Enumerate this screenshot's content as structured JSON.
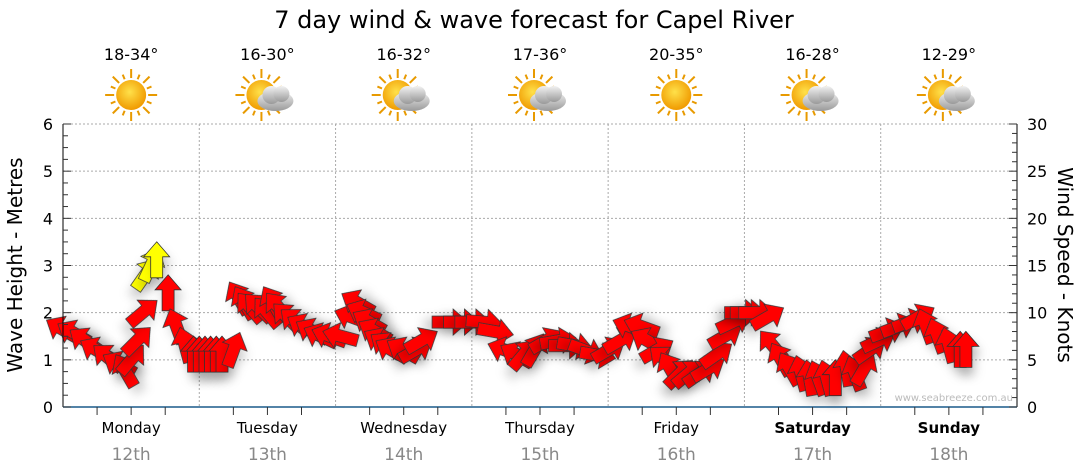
{
  "chart_data": {
    "type": "scatter",
    "title": "7 day wind & wave forecast for Capel River",
    "ylabel_left": "Wave Height - Metres",
    "ylabel_right": "Wind Speed - Knots",
    "ylim_left": [
      0,
      6
    ],
    "ylim_right": [
      0,
      30
    ],
    "yticks_left": [
      "0",
      "1",
      "2",
      "3",
      "4",
      "5",
      "6"
    ],
    "yticks_right": [
      "0",
      "5",
      "10",
      "15",
      "20",
      "25",
      "30"
    ],
    "grid": true,
    "watermark": "www.seabreeze.com.au",
    "days": [
      {
        "name": "Monday",
        "date": "12th",
        "temp": "18-34°",
        "icon": "sun-icon",
        "bold": false
      },
      {
        "name": "Tuesday",
        "date": "13th",
        "temp": "16-30°",
        "icon": "sun-cloud-icon",
        "bold": false
      },
      {
        "name": "Wednesday",
        "date": "14th",
        "temp": "16-32°",
        "icon": "sun-cloud-icon",
        "bold": false
      },
      {
        "name": "Thursday",
        "date": "15th",
        "temp": "17-36°",
        "icon": "sun-cloud-icon",
        "bold": false
      },
      {
        "name": "Friday",
        "date": "16th",
        "temp": "20-35°",
        "icon": "sun-icon",
        "bold": false
      },
      {
        "name": "Saturday",
        "date": "17th",
        "temp": "16-28°",
        "icon": "sun-cloud-icon",
        "bold": true
      },
      {
        "name": "Sunday",
        "date": "18th",
        "temp": "12-29°",
        "icon": "sun-cloud-icon",
        "bold": true
      }
    ],
    "colors": {
      "calm": "#ff0000",
      "strong": "#ffff00"
    },
    "wind_points_hour_knots_dir": [
      [
        0,
        8.2,
        300
      ],
      [
        2,
        7.8,
        300
      ],
      [
        4,
        7,
        305
      ],
      [
        6,
        6,
        300
      ],
      [
        8,
        5.2,
        310
      ],
      [
        10,
        4.5,
        300
      ],
      [
        11,
        3.8,
        330
      ],
      [
        12,
        5,
        40
      ],
      [
        13,
        7,
        45
      ],
      [
        14,
        10,
        50
      ],
      [
        14.5,
        14,
        35
      ],
      [
        15.5,
        15,
        25
      ],
      [
        16.5,
        15.5,
        0
      ],
      [
        18.5,
        12,
        0
      ],
      [
        20,
        8.5,
        340
      ],
      [
        21.5,
        6.5,
        345
      ],
      [
        23,
        5.5,
        0
      ],
      [
        24,
        5.5,
        0
      ],
      [
        25,
        5.5,
        0
      ],
      [
        26,
        5.5,
        0
      ],
      [
        27,
        5.5,
        0
      ],
      [
        28,
        5.5,
        0
      ],
      [
        30,
        6,
        20
      ],
      [
        31,
        11.5,
        330
      ],
      [
        32,
        11,
        330
      ],
      [
        33,
        10.5,
        320
      ],
      [
        34.5,
        10.5,
        315
      ],
      [
        36,
        10,
        320
      ],
      [
        37,
        11,
        330
      ],
      [
        38,
        10.5,
        320
      ],
      [
        39.5,
        9.5,
        315
      ],
      [
        41,
        9,
        310
      ],
      [
        42.5,
        8.5,
        300
      ],
      [
        44,
        8,
        300
      ],
      [
        45.5,
        7.5,
        295
      ],
      [
        47,
        7.5,
        290
      ],
      [
        49,
        7.5,
        285
      ],
      [
        51,
        9.5,
        290
      ],
      [
        52,
        11,
        300
      ],
      [
        53,
        10,
        295
      ],
      [
        54,
        9,
        300
      ],
      [
        55,
        8,
        300
      ],
      [
        56,
        7,
        300
      ],
      [
        57,
        6.5,
        305
      ],
      [
        58,
        6,
        300
      ],
      [
        60,
        6,
        300
      ],
      [
        62,
        6,
        60
      ],
      [
        63,
        7,
        60
      ],
      [
        68,
        9,
        90
      ],
      [
        70,
        9,
        90
      ],
      [
        72,
        9,
        90
      ],
      [
        74,
        9,
        95
      ],
      [
        76,
        8,
        100
      ],
      [
        78,
        6,
        290
      ],
      [
        80,
        5.5,
        300
      ],
      [
        81,
        5.5,
        40
      ],
      [
        83,
        6,
        30
      ],
      [
        85,
        7,
        60
      ],
      [
        87,
        7,
        80
      ],
      [
        88.5,
        6.5,
        90
      ],
      [
        90,
        6.5,
        100
      ],
      [
        92,
        6,
        110
      ],
      [
        94,
        5.5,
        100
      ],
      [
        96,
        6,
        60
      ],
      [
        98,
        7,
        60
      ],
      [
        100,
        8.5,
        290
      ],
      [
        102,
        8.5,
        290
      ],
      [
        103,
        7,
        300
      ],
      [
        104.5,
        6,
        60
      ],
      [
        106,
        5,
        310
      ],
      [
        107,
        4,
        330
      ],
      [
        108.5,
        3.5,
        45
      ],
      [
        110,
        3.5,
        50
      ],
      [
        112,
        3.5,
        55
      ],
      [
        113.5,
        4,
        60
      ],
      [
        115,
        5.5,
        55
      ],
      [
        116.5,
        7.5,
        60
      ],
      [
        118,
        9,
        65
      ],
      [
        119.5,
        10,
        90
      ],
      [
        120.5,
        10,
        90
      ],
      [
        122,
        10,
        90
      ],
      [
        124,
        9.5,
        60
      ],
      [
        125,
        6.5,
        320
      ],
      [
        126.5,
        5,
        330
      ],
      [
        128,
        4,
        330
      ],
      [
        130,
        3.5,
        345
      ],
      [
        131.5,
        3,
        350
      ],
      [
        133,
        3,
        340
      ],
      [
        134.5,
        3,
        345
      ],
      [
        136,
        3,
        0
      ],
      [
        138,
        4,
        350
      ],
      [
        139.5,
        3.5,
        340
      ],
      [
        141,
        4,
        30
      ],
      [
        142,
        6,
        55
      ],
      [
        143.5,
        7,
        65
      ],
      [
        145,
        8,
        70
      ],
      [
        147,
        8.5,
        70
      ],
      [
        149,
        9,
        70
      ],
      [
        150.5,
        9.5,
        60
      ],
      [
        152,
        8.5,
        340
      ],
      [
        154,
        7.5,
        340
      ],
      [
        156,
        6.5,
        345
      ],
      [
        158,
        6,
        0
      ],
      [
        159,
        6,
        0
      ]
    ]
  }
}
